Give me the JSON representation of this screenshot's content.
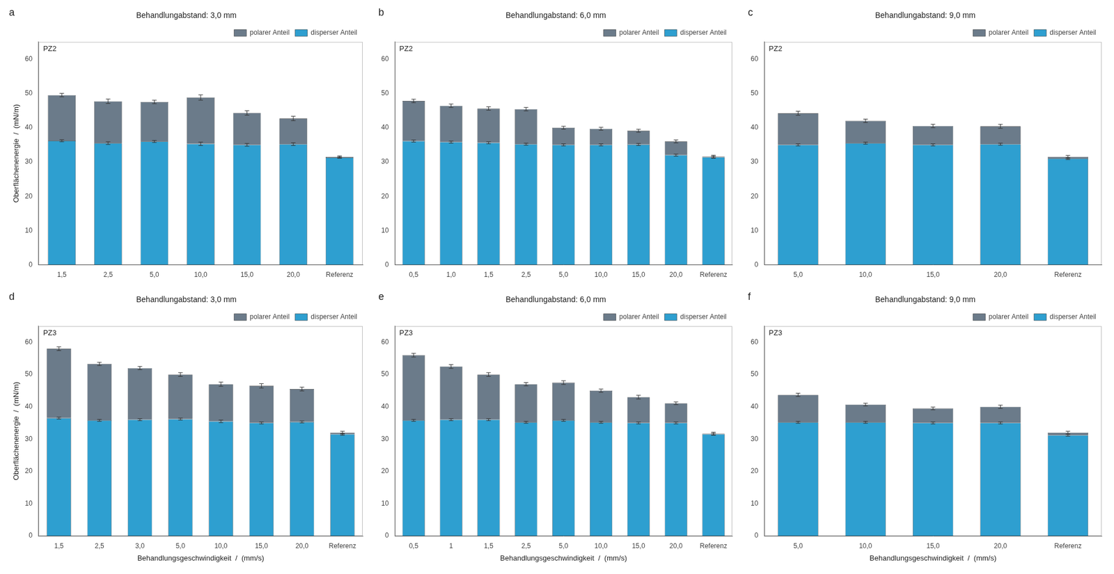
{
  "chart_data": [
    {
      "type": "bar",
      "stacked": true,
      "grid": false,
      "legend": "upper right",
      "title": "Behandlungabstand: 3,0 mm",
      "annotations": [
        "a",
        "PZ2"
      ],
      "ylabel": "Oberflächenenergie  /  (mN/m)",
      "categories": [
        "1,5",
        "2,5",
        "5,0",
        "10,0",
        "15,0",
        "20,0",
        "Referenz"
      ],
      "ylim": [
        0,
        65
      ],
      "yticks": [
        0,
        10,
        20,
        30,
        40,
        50,
        60
      ],
      "series": [
        {
          "name": "disperser Anteil",
          "color": "#2E9FD0",
          "values": [
            36.2,
            35.5,
            36.0,
            35.3,
            35.0,
            35.2,
            31.3
          ],
          "errors": [
            0.3,
            0.4,
            0.3,
            0.5,
            0.4,
            0.4,
            0.2
          ]
        },
        {
          "name": "polarer Anteil",
          "color": "#6B7B8A",
          "values": [
            13.3,
            12.2,
            11.5,
            13.5,
            9.3,
            7.5,
            0.2
          ],
          "errors": [
            0.5,
            0.6403,
            0.5,
            0.781,
            0.6403,
            0.6403,
            0.2828
          ]
        }
      ]
    },
    {
      "type": "bar",
      "stacked": true,
      "grid": false,
      "legend": "upper right",
      "title": "Behandlungabstand: 6,0 mm",
      "annotations": [
        "b",
        "PZ2"
      ],
      "categories": [
        "0,5",
        "1,0",
        "1,5",
        "2,5",
        "5,0",
        "10,0",
        "15,0",
        "20,0",
        "Referenz"
      ],
      "ylim": [
        0,
        65
      ],
      "yticks": [
        0,
        10,
        20,
        30,
        40,
        50,
        60
      ],
      "series": [
        {
          "name": "disperser Anteil",
          "color": "#2E9FD0",
          "values": [
            36.1,
            35.8,
            35.6,
            35.2,
            35.0,
            35.0,
            35.1,
            32.0,
            31.4
          ],
          "errors": [
            0.3,
            0.3,
            0.3,
            0.3,
            0.3,
            0.3,
            0.3,
            0.3,
            0.3
          ]
        },
        {
          "name": "polarer Anteil",
          "color": "#6B7B8A",
          "values": [
            11.7,
            10.6,
            10.0,
            10.2,
            5.0,
            4.7,
            4.0,
            4.0,
            0.2
          ],
          "errors": [
            0.5,
            0.5,
            0.5,
            0.5,
            0.4243,
            0.4243,
            0.4243,
            0.4243,
            0.3606
          ]
        }
      ]
    },
    {
      "type": "bar",
      "stacked": true,
      "grid": false,
      "legend": "upper right",
      "title": "Behandlungabstand: 9,0 mm",
      "annotations": [
        "c",
        "PZ2"
      ],
      "categories": [
        "5,0",
        "10,0",
        "15,0",
        "20,0",
        "Referenz"
      ],
      "ylim": [
        0,
        65
      ],
      "yticks": [
        0,
        10,
        20,
        30,
        40,
        50,
        60
      ],
      "series": [
        {
          "name": "disperser Anteil",
          "color": "#2E9FD0",
          "values": [
            35.0,
            35.5,
            35.0,
            35.2,
            31.0
          ],
          "errors": [
            0.3,
            0.3,
            0.3,
            0.3,
            0.3
          ]
        },
        {
          "name": "polarer Anteil",
          "color": "#6B7B8A",
          "values": [
            9.2,
            6.5,
            5.5,
            5.2,
            0.5
          ],
          "errors": [
            0.5831,
            0.5,
            0.5,
            0.5831,
            0.4243
          ]
        }
      ]
    },
    {
      "type": "bar",
      "stacked": true,
      "grid": false,
      "legend": "upper right",
      "title": "Behandlungabstand: 3,0 mm",
      "annotations": [
        "d",
        "PZ3"
      ],
      "ylabel": "Oberflächenenergie  /  (mN/m)",
      "xlabel": "Behandlungsgeschwindigkeit  /  (mm/s)",
      "categories": [
        "1,5",
        "2,5",
        "3,0",
        "5,0",
        "10,0",
        "15,0",
        "20,0",
        "Referenz"
      ],
      "ylim": [
        0,
        65
      ],
      "yticks": [
        0,
        10,
        20,
        30,
        40,
        50,
        60
      ],
      "series": [
        {
          "name": "disperser Anteil",
          "color": "#2E9FD0",
          "values": [
            36.5,
            35.8,
            36.0,
            36.2,
            35.5,
            35.0,
            35.3,
            31.5
          ],
          "errors": [
            0.3,
            0.3,
            0.3,
            0.3,
            0.4,
            0.3,
            0.3,
            0.3
          ]
        },
        {
          "name": "polarer Anteil",
          "color": "#6B7B8A",
          "values": [
            21.5,
            17.5,
            16.0,
            13.8,
            11.5,
            11.5,
            10.2,
            0.5
          ],
          "errors": [
            0.5831,
            0.5,
            0.5,
            0.5831,
            0.6403,
            0.6708,
            0.5831,
            0.4243
          ]
        }
      ]
    },
    {
      "type": "bar",
      "stacked": true,
      "grid": false,
      "legend": "upper right",
      "title": "Behandlungabstand: 6,0 mm",
      "annotations": [
        "e",
        "PZ3"
      ],
      "xlabel": "Behandlungsgeschwindigkeit  /  (mm/s)",
      "categories": [
        "0,5",
        "1",
        "1,5",
        "2,5",
        "5,0",
        "10,0",
        "15,0",
        "20,0",
        "Referenz"
      ],
      "ylim": [
        0,
        65
      ],
      "yticks": [
        0,
        10,
        20,
        30,
        40,
        50,
        60
      ],
      "series": [
        {
          "name": "disperser Anteil",
          "color": "#2E9FD0",
          "values": [
            35.8,
            36.0,
            36.0,
            35.2,
            35.8,
            35.2,
            35.0,
            35.0,
            31.5
          ],
          "errors": [
            0.3,
            0.3,
            0.3,
            0.3,
            0.3,
            0.3,
            0.3,
            0.3,
            0.3
          ]
        },
        {
          "name": "polarer Anteil",
          "color": "#6B7B8A",
          "values": [
            20.2,
            16.5,
            14.0,
            11.8,
            11.7,
            9.8,
            8.0,
            6.1,
            0.2
          ],
          "errors": [
            0.5831,
            0.5831,
            0.5831,
            0.5,
            0.5831,
            0.5,
            0.5831,
            0.4243,
            0.4243
          ]
        }
      ]
    },
    {
      "type": "bar",
      "stacked": true,
      "grid": false,
      "legend": "upper right",
      "title": "Behandlungabstand: 9,0 mm",
      "annotations": [
        "f",
        "PZ3"
      ],
      "xlabel": "Behandlungsgeschwindigkeit  /  (mm/s)",
      "categories": [
        "5,0",
        "10,0",
        "15,0",
        "20,0",
        "Referenz"
      ],
      "ylim": [
        0,
        65
      ],
      "yticks": [
        0,
        10,
        20,
        30,
        40,
        50,
        60
      ],
      "series": [
        {
          "name": "disperser Anteil",
          "color": "#2E9FD0",
          "values": [
            35.2,
            35.2,
            35.0,
            35.0,
            31.2
          ],
          "errors": [
            0.3,
            0.3,
            0.3,
            0.3,
            0.3
          ]
        },
        {
          "name": "polarer Anteil",
          "color": "#6B7B8A",
          "values": [
            8.5,
            5.5,
            4.5,
            5.0,
            0.8
          ],
          "errors": [
            0.5,
            0.4243,
            0.4243,
            0.5,
            0.4243
          ]
        }
      ]
    }
  ]
}
